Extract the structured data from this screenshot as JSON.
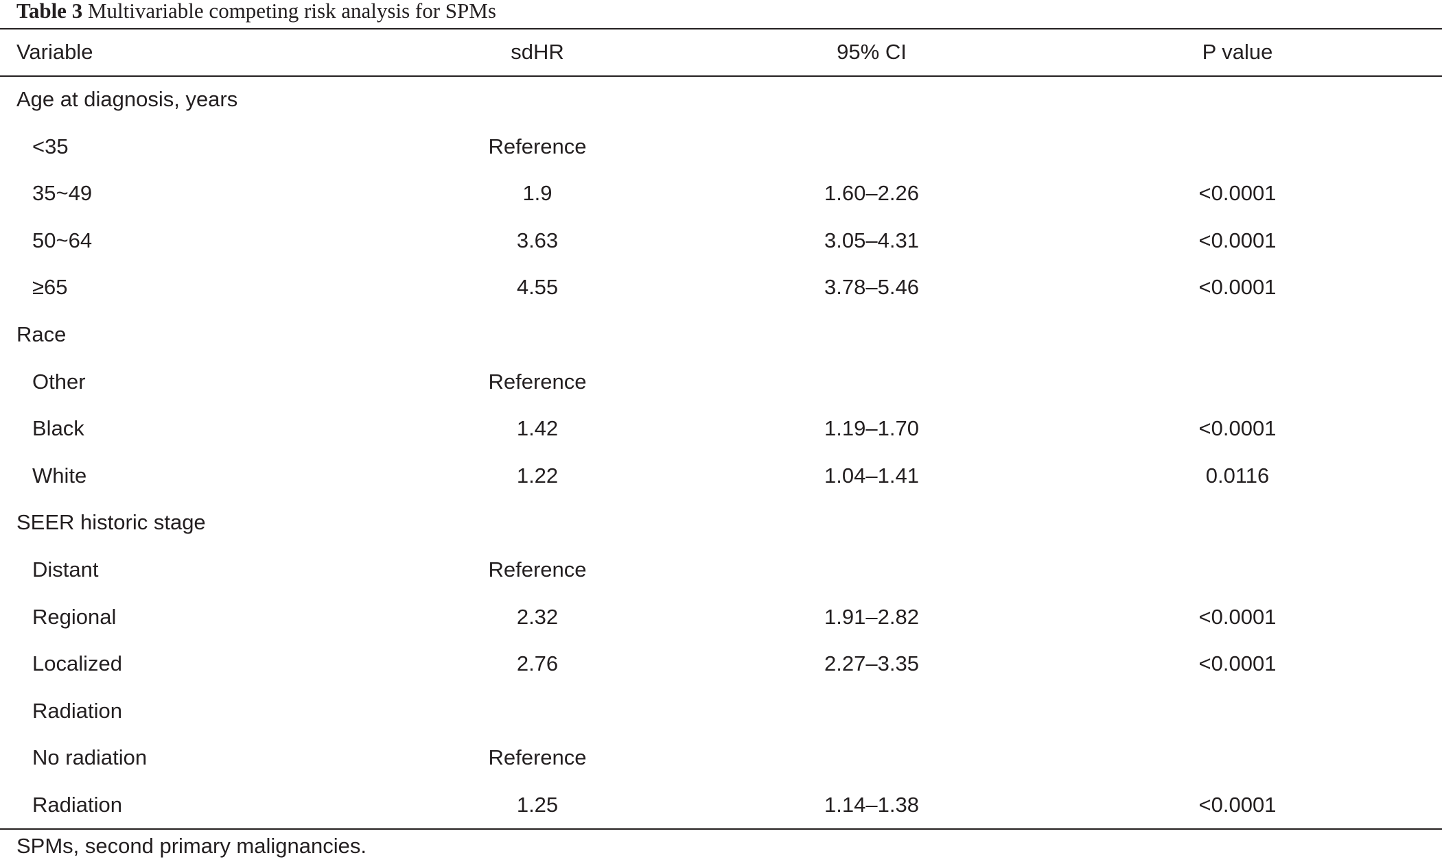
{
  "caption": {
    "label": "Table 3",
    "title": "Multivariable competing risk analysis for SPMs"
  },
  "header": {
    "variable": "Variable",
    "sdhr": "sdHR",
    "ci": "95% CI",
    "p": "P value"
  },
  "rows": [
    {
      "variable": "Age at diagnosis, years",
      "sub": false,
      "sdhr": "",
      "ci": "",
      "p": ""
    },
    {
      "variable": "<35",
      "sub": true,
      "sdhr": "Reference",
      "ci": "",
      "p": ""
    },
    {
      "variable": "35~49",
      "sub": true,
      "sdhr": "1.9",
      "ci": "1.60–2.26",
      "p": "<0.0001"
    },
    {
      "variable": "50~64",
      "sub": true,
      "sdhr": "3.63",
      "ci": "3.05–4.31",
      "p": "<0.0001"
    },
    {
      "variable": "≥65",
      "sub": true,
      "sdhr": "4.55",
      "ci": "3.78–5.46",
      "p": "<0.0001"
    },
    {
      "variable": "Race",
      "sub": false,
      "sdhr": "",
      "ci": "",
      "p": ""
    },
    {
      "variable": "Other",
      "sub": true,
      "sdhr": "Reference",
      "ci": "",
      "p": ""
    },
    {
      "variable": "Black",
      "sub": true,
      "sdhr": "1.42",
      "ci": "1.19–1.70",
      "p": "<0.0001"
    },
    {
      "variable": "White",
      "sub": true,
      "sdhr": "1.22",
      "ci": "1.04–1.41",
      "p": "0.0116"
    },
    {
      "variable": "SEER historic stage",
      "sub": false,
      "sdhr": "",
      "ci": "",
      "p": ""
    },
    {
      "variable": "Distant",
      "sub": true,
      "sdhr": "Reference",
      "ci": "",
      "p": ""
    },
    {
      "variable": "Regional",
      "sub": true,
      "sdhr": "2.32",
      "ci": "1.91–2.82",
      "p": "<0.0001"
    },
    {
      "variable": "Localized",
      "sub": true,
      "sdhr": "2.76",
      "ci": "2.27–3.35",
      "p": "<0.0001"
    },
    {
      "variable": "Radiation",
      "sub": true,
      "sdhr": "",
      "ci": "",
      "p": ""
    },
    {
      "variable": "No radiation",
      "sub": true,
      "sdhr": "Reference",
      "ci": "",
      "p": ""
    },
    {
      "variable": "Radiation",
      "sub": true,
      "sdhr": "1.25",
      "ci": "1.14–1.38",
      "p": "<0.0001"
    }
  ],
  "footnote": "SPMs, second primary malignancies."
}
